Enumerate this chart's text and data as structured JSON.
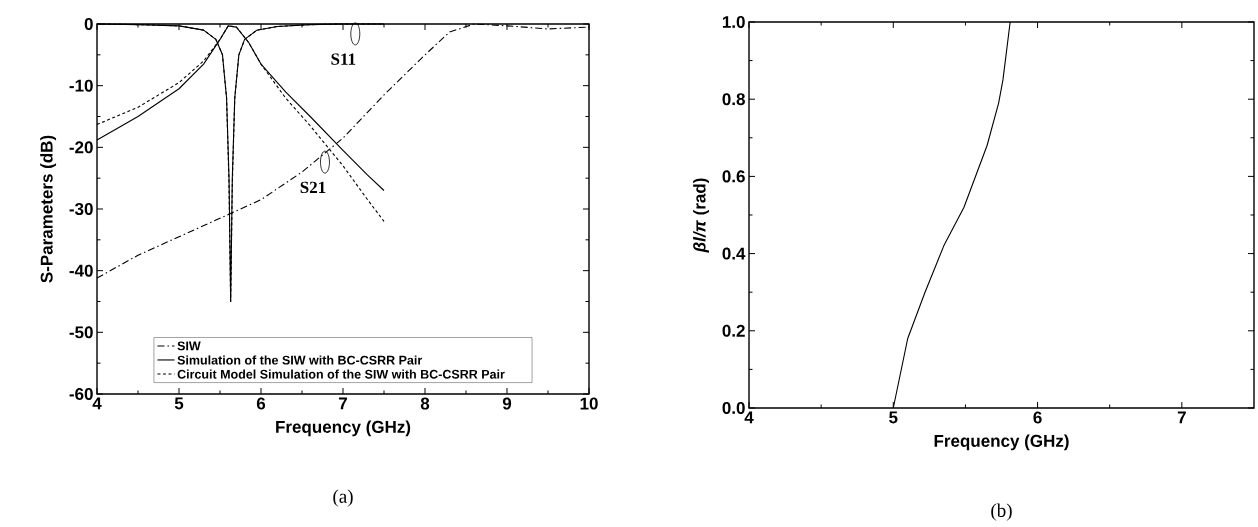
{
  "chart_data": [
    {
      "type": "line",
      "xlabel": "Frequency (GHz)",
      "ylabel": "S-Parameters (dB)",
      "xlim": [
        4,
        10
      ],
      "xticks": [
        4,
        5,
        6,
        7,
        8,
        9,
        10
      ],
      "ylim": [
        -60,
        0
      ],
      "yticks": [
        -60,
        -50,
        -40,
        -30,
        -20,
        -10,
        0
      ],
      "legend": "bottom",
      "series": [
        {
          "name": "SIW",
          "color": "#000000",
          "line_style": "dashdot",
          "x": [
            4,
            4.5,
            5,
            5.5,
            6,
            6.5,
            7,
            7.5,
            8,
            8.3,
            8.6,
            9,
            9.5,
            10
          ],
          "values": [
            -41.2,
            -37.5,
            -34.5,
            -31.5,
            -28.5,
            -24,
            -18.5,
            -11.5,
            -5,
            -1.3,
            0,
            -0.3,
            -0.8,
            -0.5
          ]
        },
        {
          "name": "Simulation of the SIW with BC-CSRR Pair",
          "color": "#000000",
          "line_style": "solid",
          "x": [
            4,
            4.5,
            5,
            5.3,
            5.5,
            5.6,
            5.7,
            5.85,
            6,
            6.3,
            6.6,
            7,
            7.3,
            7.5
          ],
          "values": [
            -18.8,
            -15,
            -10.5,
            -6.5,
            -2.5,
            -0.3,
            -0.5,
            -3,
            -6.5,
            -11,
            -15,
            -20.5,
            -24.5,
            -27
          ]
        },
        {
          "name": "Circuit Model Simulation of the SIW with BC-CSRR Pair",
          "color": "#000000",
          "line_style": "dashed",
          "x": [
            4,
            4.5,
            5,
            5.3,
            5.5,
            5.6,
            5.7,
            5.85,
            6,
            6.3,
            6.6,
            7,
            7.3,
            7.5
          ],
          "values": [
            -16.3,
            -13.5,
            -9.5,
            -6,
            -2.5,
            -0.3,
            -0.5,
            -3,
            -6.5,
            -12,
            -16.5,
            -23,
            -28.5,
            -32
          ]
        },
        {
          "color": "#000000",
          "line_style": "solid",
          "x": [
            4,
            4.5,
            5,
            5.3,
            5.45,
            5.53,
            5.58,
            5.61,
            5.63,
            5.65,
            5.68,
            5.73,
            5.8,
            5.95,
            6.2,
            6.6,
            7,
            7.5
          ],
          "values": [
            0,
            -0.1,
            -0.3,
            -1,
            -2.5,
            -5,
            -12,
            -25,
            -45,
            -25,
            -12,
            -5,
            -2.5,
            -1,
            -0.4,
            -0.1,
            0,
            0
          ]
        },
        {
          "color": "#000000",
          "line_style": "dashed",
          "x": [
            4,
            4.5,
            5,
            5.3,
            5.45,
            5.53,
            5.58,
            5.61,
            5.63,
            5.65,
            5.68,
            5.73,
            5.8,
            5.95,
            6.2,
            6.6,
            7,
            7.5
          ],
          "values": [
            0,
            -0.1,
            -0.3,
            -1,
            -2.5,
            -5,
            -12,
            -26,
            -45,
            -26,
            -12,
            -5,
            -2.5,
            -1,
            -0.4,
            -0.1,
            0,
            0
          ]
        }
      ],
      "annotations": [
        {
          "text": "S11",
          "x": 7.15,
          "y": -1.6
        },
        {
          "text": "S21",
          "x": 6.78,
          "y": -22.4
        },
        "(a)"
      ]
    },
    {
      "type": "line",
      "xlabel": "Frequency (GHz)",
      "ylabel": "*βl/π* (rad)",
      "xlim": [
        4,
        7.5
      ],
      "xticks": [
        4,
        5,
        6,
        7
      ],
      "ylim": [
        0,
        1
      ],
      "yticks": [
        {
          "value": 0,
          "label": "0.0"
        },
        0.2,
        0.4,
        0.6,
        0.8,
        {
          "value": 1,
          "label": "1.0"
        }
      ],
      "series": [
        {
          "color": "#000000",
          "line_style": "solid",
          "x": [
            5.0,
            5.1,
            5.22,
            5.35,
            5.49,
            5.65,
            5.73,
            5.76,
            5.81
          ],
          "values": [
            0,
            0.18,
            0.3,
            0.42,
            0.52,
            0.68,
            0.79,
            0.85,
            1.0
          ]
        }
      ],
      "annotations": [
        "(b)"
      ]
    }
  ]
}
